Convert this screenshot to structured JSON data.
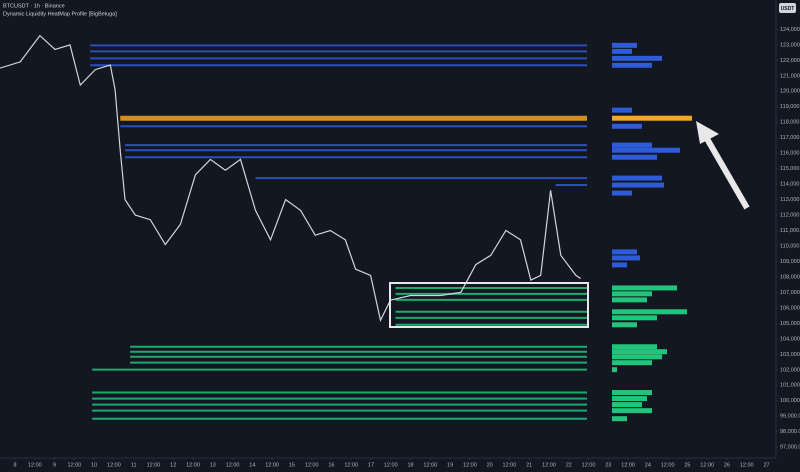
{
  "chart_data": {
    "type": "line",
    "title": "BTCUSDT · 1h · Binance",
    "subtitle": "Dynamic Liquidity HeatMap Profile [BigBeluga]",
    "currency": "USDT",
    "grid": false,
    "xlim": [
      7.62,
      27.24
    ],
    "ylim": [
      96300,
      125900
    ],
    "xticks": [
      8,
      {
        "value": 8.5,
        "label": "12:00"
      },
      9,
      {
        "value": 9.5,
        "label": "12:00"
      },
      10,
      {
        "value": 10.5,
        "label": "12:00"
      },
      11,
      {
        "value": 11.5,
        "label": "12:00"
      },
      12,
      {
        "value": 12.5,
        "label": "12:00"
      },
      13,
      {
        "value": 13.5,
        "label": "12:00"
      },
      14,
      {
        "value": 14.5,
        "label": "12:00"
      },
      15,
      {
        "value": 15.5,
        "label": "12:00"
      },
      16,
      {
        "value": 16.5,
        "label": "12:00"
      },
      17,
      {
        "value": 17.5,
        "label": "12:00"
      },
      18,
      {
        "value": 18.5,
        "label": "12:00"
      },
      19,
      {
        "value": 19.5,
        "label": "12:00"
      },
      20,
      {
        "value": 20.5,
        "label": "12:00"
      },
      21,
      {
        "value": 21.5,
        "label": "12:00"
      },
      22,
      {
        "value": 22.5,
        "label": "12:00"
      },
      23,
      {
        "value": 23.5,
        "label": "12:00"
      },
      24,
      {
        "value": 24.5,
        "label": "12:00"
      },
      25,
      {
        "value": 25.5,
        "label": "12:00"
      },
      26,
      {
        "value": 26.5,
        "label": "12:00"
      },
      27
    ],
    "yticks": [
      {
        "value": 97000,
        "label": "97,000.00"
      },
      {
        "value": 98000,
        "label": "98,000.00"
      },
      {
        "value": 99000,
        "label": "99,000.00"
      },
      {
        "value": 100000,
        "label": "100,000.00"
      },
      {
        "value": 101000,
        "label": "101,000.00"
      },
      {
        "value": 102000,
        "label": "102,000.00"
      },
      {
        "value": 103000,
        "label": "103,000.00"
      },
      {
        "value": 104000,
        "label": "104,000.00"
      },
      {
        "value": 105000,
        "label": "105,000.00"
      },
      {
        "value": 106000,
        "label": "106,000.00"
      },
      {
        "value": 107000,
        "label": "107,000.00"
      },
      {
        "value": 108000,
        "label": "108,000.00"
      },
      {
        "value": 109000,
        "label": "109,000.00"
      },
      {
        "value": 110000,
        "label": "110,000.00"
      },
      {
        "value": 111000,
        "label": "111,000.00"
      },
      {
        "value": 112000,
        "label": "112,000.00"
      },
      {
        "value": 113000,
        "label": "113,000.00"
      },
      {
        "value": 114000,
        "label": "114,000.00"
      },
      {
        "value": 115000,
        "label": "115,000.00"
      },
      {
        "value": 116000,
        "label": "116,000.00"
      },
      {
        "value": 117000,
        "label": "117,000.00"
      },
      {
        "value": 118000,
        "label": "118,000.00"
      },
      {
        "value": 119000,
        "label": "119,000.00"
      },
      {
        "value": 120000,
        "label": "120,000.00"
      },
      {
        "value": 121000,
        "label": "121,000.00"
      },
      {
        "value": 122000,
        "label": "122,000.00"
      },
      {
        "value": 123000,
        "label": "123,000.00"
      },
      {
        "value": 124000,
        "label": "124,000.00"
      }
    ],
    "series": [
      {
        "color": "#d1d4dc",
        "x": [
          7.62,
          8.13,
          8.63,
          9.01,
          9.39,
          9.65,
          10.03,
          10.41,
          10.53,
          10.66,
          10.78,
          11.04,
          11.42,
          11.8,
          12.18,
          12.56,
          12.94,
          13.32,
          13.7,
          14.08,
          14.46,
          14.84,
          15.22,
          15.59,
          15.97,
          16.35,
          16.61,
          16.99,
          17.24,
          17.49,
          18.0,
          18.76,
          19.27,
          19.65,
          20.03,
          20.41,
          20.78,
          21.04,
          21.29,
          21.54,
          21.8,
          22.18,
          22.3
        ],
        "values": [
          121500,
          121900,
          123600,
          122700,
          123000,
          120400,
          121400,
          121700,
          120100,
          116200,
          113000,
          112000,
          111700,
          110100,
          111400,
          114600,
          115600,
          114900,
          115600,
          112300,
          110400,
          113000,
          112300,
          110700,
          111000,
          110400,
          108500,
          108100,
          105200,
          106500,
          106800,
          106800,
          107000,
          108800,
          109400,
          111000,
          110400,
          107800,
          108100,
          113600,
          109400,
          108100,
          107900
        ]
      }
    ],
    "levels": [
      {
        "price": 122970,
        "start": 9.9,
        "volume": 25,
        "color": "#2e5bd8"
      },
      {
        "price": 122580,
        "start": 9.9,
        "volume": 20,
        "color": "#2e5bd8"
      },
      {
        "price": 122130,
        "start": 9.9,
        "volume": 50,
        "color": "#2e5bd8"
      },
      {
        "price": 121680,
        "start": 9.9,
        "volume": 40,
        "color": "#2e5bd8"
      },
      {
        "price": 118780,
        "start": null,
        "volume": 20,
        "color": "#2e5bd8"
      },
      {
        "price": 118260,
        "start": 10.66,
        "volume": 80,
        "color": "#f5a623"
      },
      {
        "price": 117740,
        "start": 10.66,
        "volume": 30,
        "color": "#2e5bd8"
      },
      {
        "price": 116520,
        "start": 10.78,
        "volume": 40,
        "color": "#2e5bd8"
      },
      {
        "price": 116190,
        "start": 10.78,
        "volume": 68,
        "color": "#2e5bd8"
      },
      {
        "price": 115740,
        "start": 10.78,
        "volume": 45,
        "color": "#2e5bd8"
      },
      {
        "price": 114390,
        "start": 14.08,
        "volume": 50,
        "color": "#2e5bd8"
      },
      {
        "price": 113940,
        "start": 21.67,
        "volume": 52,
        "color": "#2e5bd8"
      },
      {
        "price": 113420,
        "start": null,
        "volume": 20,
        "color": "#2e5bd8"
      },
      {
        "price": 109620,
        "start": null,
        "volume": 25,
        "color": "#2e5bd8"
      },
      {
        "price": 109230,
        "start": null,
        "volume": 28,
        "color": "#2e5bd8"
      },
      {
        "price": 108780,
        "start": null,
        "volume": 15,
        "color": "#2e5bd8"
      },
      {
        "price": 107290,
        "start": 17.62,
        "volume": 65,
        "color": "#22c47a"
      },
      {
        "price": 106910,
        "start": 17.62,
        "volume": 40,
        "color": "#22c47a"
      },
      {
        "price": 106520,
        "start": 17.62,
        "volume": 35,
        "color": "#22c47a"
      },
      {
        "price": 105750,
        "start": 17.62,
        "volume": 75,
        "color": "#22c47a"
      },
      {
        "price": 105360,
        "start": 17.62,
        "volume": 45,
        "color": "#22c47a"
      },
      {
        "price": 104910,
        "start": 17.62,
        "volume": 25,
        "color": "#22c47a"
      },
      {
        "price": 103490,
        "start": 10.91,
        "volume": 45,
        "color": "#22c47a"
      },
      {
        "price": 103170,
        "start": 10.91,
        "volume": 55,
        "color": "#22c47a"
      },
      {
        "price": 102840,
        "start": 10.91,
        "volume": 50,
        "color": "#22c47a"
      },
      {
        "price": 102460,
        "start": 10.91,
        "volume": 40,
        "color": "#22c47a"
      },
      {
        "price": 102010,
        "start": 9.95,
        "volume": 5,
        "color": "#22c47a"
      },
      {
        "price": 100530,
        "start": 9.95,
        "volume": 40,
        "color": "#22c47a"
      },
      {
        "price": 100140,
        "start": 9.95,
        "volume": 35,
        "color": "#22c47a"
      },
      {
        "price": 99750,
        "start": 9.95,
        "volume": 30,
        "color": "#22c47a"
      },
      {
        "price": 99360,
        "start": 9.95,
        "volume": 40,
        "color": "#22c47a"
      },
      {
        "price": 98840,
        "start": 9.95,
        "volume": 15,
        "color": "#22c47a"
      }
    ]
  }
}
